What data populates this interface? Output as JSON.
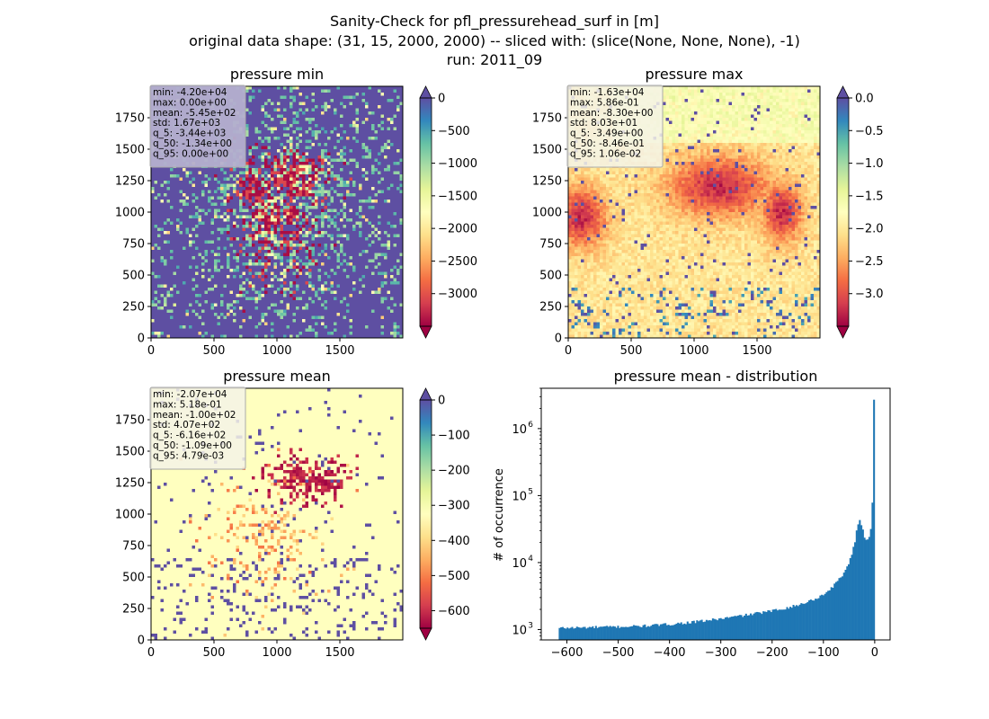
{
  "figure": {
    "suptitle_lines": [
      "Sanity-Check for pfl_pressurehead_surf in [m]",
      "original data shape: (31, 15, 2000, 2000) -- sliced with: (slice(None, None, None), -1)",
      "run: 2011_09"
    ]
  },
  "colormap": {
    "name": "Spectral",
    "stops": [
      "#9e0142",
      "#d53e4f",
      "#f46d43",
      "#fdae61",
      "#fee08b",
      "#ffffbf",
      "#e6f598",
      "#abdda4",
      "#66c2a5",
      "#3288bd",
      "#5e4fa2"
    ]
  },
  "maps": [
    {
      "title": "pressure min",
      "xticks": [
        "0",
        "500",
        "1000",
        "1500"
      ],
      "yticks": [
        "0",
        "250",
        "500",
        "750",
        "1000",
        "1250",
        "1500",
        "1750"
      ],
      "xlim": [
        0,
        2000
      ],
      "ylim": [
        0,
        2000
      ],
      "colorbar": {
        "min": -3500,
        "max": 0,
        "ticks": [
          "0",
          "−500",
          "−1000",
          "−1500",
          "−2000",
          "−2500",
          "−3000"
        ],
        "tick_values": [
          0,
          -500,
          -1000,
          -1500,
          -2000,
          -2500,
          -3000
        ],
        "extend": "both"
      },
      "stats": [
        "min: -4.20e+04",
        "max: 0.00e+00",
        "mean: -5.45e+02",
        "std: 1.67e+03",
        "q_5: -3.44e+03",
        "q_50: -1.34e+00",
        "q_95: 0.00e+00"
      ],
      "stats_box_dark": true,
      "background": "#5e4fa2"
    },
    {
      "title": "pressure max",
      "xticks": [
        "0",
        "500",
        "1000",
        "1500"
      ],
      "yticks": [
        "0",
        "250",
        "500",
        "750",
        "1000",
        "1250",
        "1500",
        "1750"
      ],
      "xlim": [
        0,
        2000
      ],
      "ylim": [
        0,
        2000
      ],
      "colorbar": {
        "min": -3.5,
        "max": 0.0,
        "ticks": [
          "0.0",
          "−0.5",
          "−1.0",
          "−1.5",
          "−2.0",
          "−2.5",
          "−3.0"
        ],
        "tick_values": [
          0,
          -0.5,
          -1.0,
          -1.5,
          -2.0,
          -2.5,
          -3.0
        ],
        "extend": "both"
      },
      "stats": [
        "min: -1.63e+04",
        "max: 5.86e-01",
        "mean: -8.30e+00",
        "std: 8.03e+01",
        "q_5: -3.49e+00",
        "q_50: -8.46e-01",
        "q_95: 1.06e-02"
      ],
      "stats_box_dark": false,
      "background": "#fdc97a"
    },
    {
      "title": "pressure mean",
      "xticks": [
        "0",
        "500",
        "1000",
        "1500"
      ],
      "yticks": [
        "0",
        "250",
        "500",
        "750",
        "1000",
        "1250",
        "1500",
        "1750"
      ],
      "xlim": [
        0,
        2000
      ],
      "ylim": [
        0,
        2000
      ],
      "colorbar": {
        "min": -650,
        "max": 0,
        "ticks": [
          "0",
          "−100",
          "−200",
          "−300",
          "−400",
          "−500",
          "−600"
        ],
        "tick_values": [
          0,
          -100,
          -200,
          -300,
          -400,
          -500,
          -600
        ],
        "extend": "both"
      },
      "stats": [
        "min: -2.07e+04",
        "max: 5.18e-01",
        "mean: -1.00e+02",
        "std: 4.07e+02",
        "q_5: -6.16e+02",
        "q_50: -1.09e+00",
        "q_95: 4.79e-03"
      ],
      "stats_box_dark": false,
      "background": "#ffffbf"
    }
  ],
  "chart_data": {
    "type": "bar",
    "title": "pressure mean - distribution",
    "ylabel": "# of occurrence",
    "xlabel": "",
    "yscale": "log",
    "xlim": [
      -650,
      30
    ],
    "ylim": [
      700,
      4000000
    ],
    "xticks": [
      -600,
      -500,
      -400,
      -300,
      -200,
      -100,
      0
    ],
    "xtick_labels": [
      "−600",
      "−500",
      "−400",
      "−300",
      "−200",
      "−100",
      "0"
    ],
    "yticks": [
      1000,
      10000,
      100000,
      1000000
    ],
    "ytick_labels": [
      "10",
      "10",
      "10",
      "10"
    ],
    "ytick_exponents": [
      "3",
      "4",
      "5",
      "6"
    ],
    "color": "#1f77b4",
    "bin_range": [
      -616,
      0
    ],
    "bin_count": 200,
    "profile_x": [
      -616,
      -600,
      -550,
      -500,
      -450,
      -400,
      -350,
      -300,
      -250,
      -200,
      -150,
      -120,
      -100,
      -80,
      -60,
      -50,
      -40,
      -35,
      -30,
      -25,
      -20,
      -15,
      -10,
      -6,
      -4,
      -2,
      0
    ],
    "profile_y": [
      1050,
      1060,
      1080,
      1100,
      1130,
      1200,
      1300,
      1450,
      1650,
      1900,
      2300,
      2800,
      3300,
      4500,
      7000,
      10000,
      18000,
      30000,
      46000,
      35000,
      24000,
      22000,
      25000,
      40000,
      105000,
      2700000,
      2700000
    ]
  }
}
